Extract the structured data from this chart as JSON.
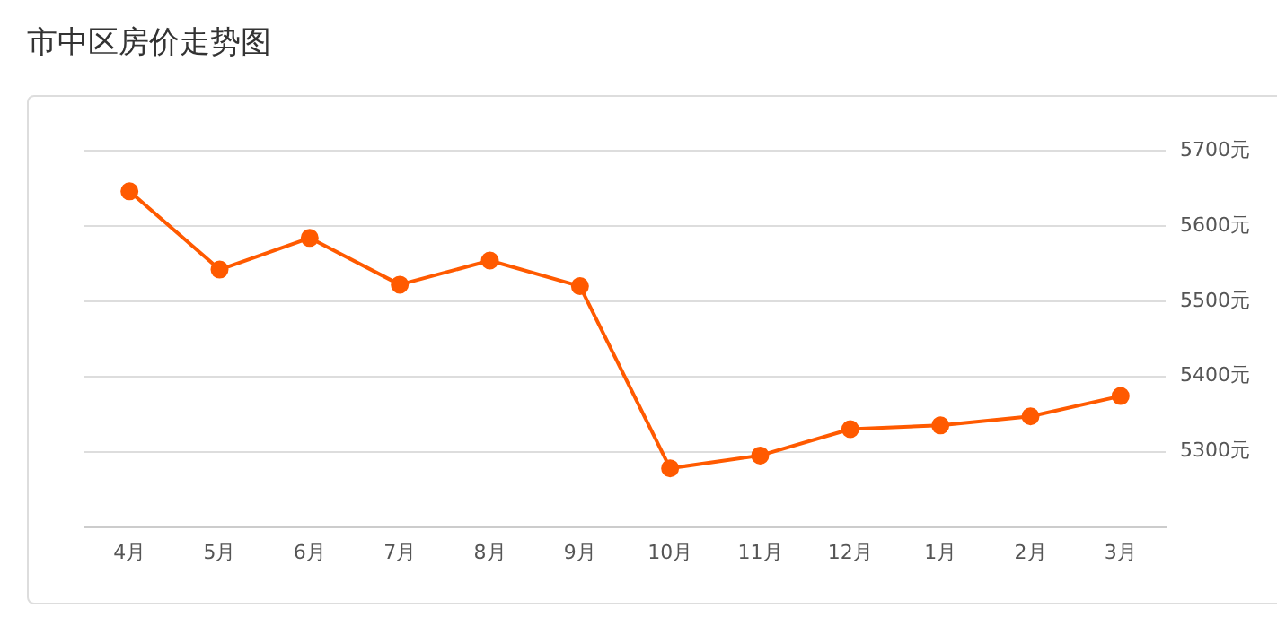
{
  "chart_data": {
    "type": "line",
    "title": "市中区房价走势图",
    "categories": [
      "4月",
      "5月",
      "6月",
      "7月",
      "8月",
      "9月",
      "10月",
      "11月",
      "12月",
      "1月",
      "2月",
      "3月"
    ],
    "series": [
      {
        "color": "#ff5a00",
        "values": [
          5646,
          5542,
          5584,
          5522,
          5554,
          5520,
          5278,
          5295,
          5330,
          5335,
          5347,
          5374
        ]
      }
    ],
    "ylim": [
      5200,
      5700
    ],
    "yticks": [
      {
        "value": 5300,
        "label": "5300元"
      },
      {
        "value": 5400,
        "label": "5400元"
      },
      {
        "value": 5500,
        "label": "5500元"
      },
      {
        "value": 5600,
        "label": "5600元"
      },
      {
        "value": 5700,
        "label": "5700元"
      }
    ],
    "grid": "y",
    "legend": false,
    "marker": "circle",
    "line_style": "solid"
  }
}
